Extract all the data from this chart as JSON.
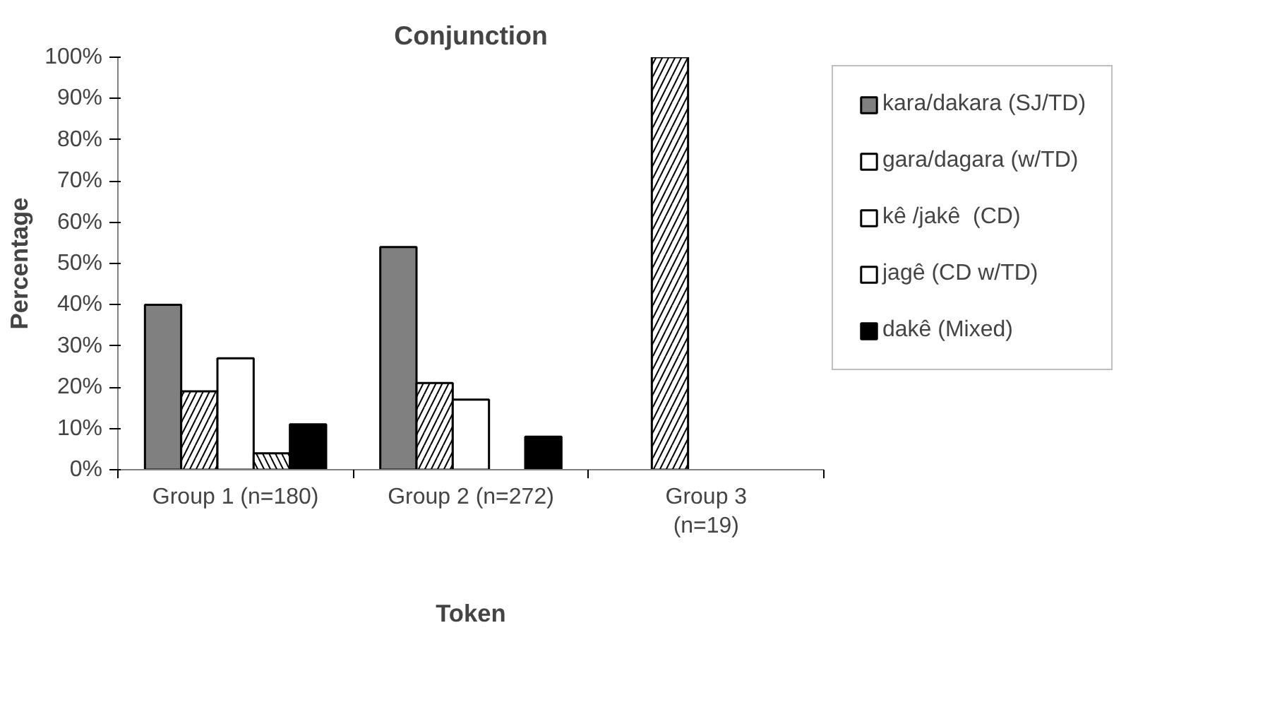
{
  "chart_data": {
    "type": "bar",
    "title": "Conjunction",
    "xlabel": "Token",
    "ylabel": "Percentage",
    "categories": [
      "Group 1 (n=180)",
      "Group 2 (n=272)",
      "Group 3\n(n=19)"
    ],
    "series": [
      {
        "name": "kara/dakara (SJ/TD)",
        "color": "#808080",
        "values": [
          40,
          54,
          null
        ]
      },
      {
        "name": "gara/dagara (w/TD)",
        "color": "#ffffff",
        "values": [
          19,
          21,
          100
        ]
      },
      {
        "name": "kê /jakê  (CD)",
        "color": "#ffffff",
        "values": [
          27,
          17,
          null
        ]
      },
      {
        "name": "jagê (CD w/TD)",
        "color": "#ffffff",
        "values": [
          4,
          null,
          null
        ]
      },
      {
        "name": "dakê (Mixed)",
        "color": "#000000",
        "values": [
          11,
          8,
          null
        ]
      }
    ],
    "ylim": [
      0,
      100
    ],
    "yticks": [
      {
        "value": 0,
        "label": "0%"
      },
      {
        "value": 10,
        "label": "10%"
      },
      {
        "value": 20,
        "label": "20%"
      },
      {
        "value": 30,
        "label": "30%"
      },
      {
        "value": 40,
        "label": "40%"
      },
      {
        "value": 50,
        "label": "50%"
      },
      {
        "value": 60,
        "label": "60%"
      },
      {
        "value": 70,
        "label": "70%"
      },
      {
        "value": 80,
        "label": "80%"
      },
      {
        "value": 90,
        "label": "90%"
      },
      {
        "value": 100,
        "label": "100%"
      }
    ],
    "grid": false,
    "legend": "right"
  }
}
